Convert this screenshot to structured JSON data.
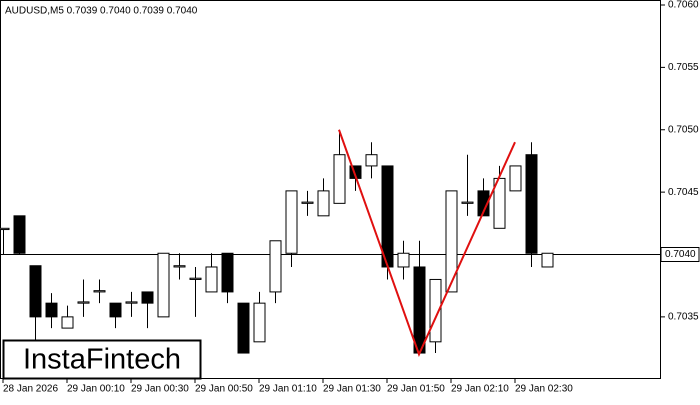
{
  "chart_data": {
    "type": "candlestick",
    "title": "AUDUSD,M5  0.7039 0.7040 0.7039 0.7040",
    "logo": "InstaFintech",
    "categories": [
      "28 Jan 2026",
      null,
      null,
      null,
      "29 Jan 00:10",
      null,
      null,
      null,
      "29 Jan 00:30",
      null,
      null,
      null,
      "29 Jan 00:50",
      null,
      null,
      null,
      "29 Jan 01:10",
      null,
      null,
      null,
      "29 Jan 01:30",
      null,
      null,
      null,
      "29 Jan 01:50",
      null,
      null,
      null,
      "29 Jan 02:10",
      null,
      null,
      null,
      "29 Jan 02:30",
      null,
      null
    ],
    "open": [
      0.7042,
      0.70431,
      0.70391,
      0.70361,
      0.70341,
      0.70361,
      0.7037,
      0.70361,
      0.70361,
      0.7037,
      0.7035,
      0.7039,
      0.7038,
      0.7037,
      0.70401,
      0.70361,
      0.7033,
      0.7037,
      0.70401,
      0.70441,
      0.70431,
      0.70441,
      0.70471,
      0.70471,
      0.70471,
      0.7039,
      0.7039,
      0.7033,
      0.7037,
      0.70441,
      0.70451,
      0.70421,
      0.70451,
      0.7048,
      0.7039
    ],
    "high": [
      0.70421,
      0.70431,
      0.70391,
      0.70369,
      0.70359,
      0.7038,
      0.7038,
      0.70361,
      0.7037,
      0.7037,
      0.70401,
      0.70401,
      0.7039,
      0.70401,
      0.70401,
      0.70361,
      0.7037,
      0.70411,
      0.70451,
      0.70451,
      0.70461,
      0.705,
      0.70471,
      0.7049,
      0.70471,
      0.70411,
      0.70411,
      0.7038,
      0.70451,
      0.7048,
      0.70461,
      0.70471,
      0.70471,
      0.7049,
      0.70401
    ],
    "low": [
      0.704,
      0.704,
      0.70331,
      0.70341,
      0.70341,
      0.7035,
      0.70361,
      0.70341,
      0.7035,
      0.70341,
      0.7035,
      0.7038,
      0.7035,
      0.7037,
      0.70361,
      0.70321,
      0.7033,
      0.70361,
      0.7039,
      0.70431,
      0.70431,
      0.70441,
      0.70451,
      0.70461,
      0.7038,
      0.7038,
      0.70321,
      0.70321,
      0.7037,
      0.70431,
      0.70431,
      0.70421,
      0.70451,
      0.7039,
      0.7039
    ],
    "close": [
      0.70421,
      0.70401,
      0.7035,
      0.7035,
      0.7035,
      0.70362,
      0.70371,
      0.7035,
      0.70362,
      0.70361,
      0.70401,
      0.70391,
      0.70381,
      0.7039,
      0.7037,
      0.70321,
      0.70361,
      0.70411,
      0.70451,
      0.70442,
      0.70451,
      0.7048,
      0.70461,
      0.7048,
      0.7039,
      0.70401,
      0.70321,
      0.7038,
      0.70451,
      0.70442,
      0.70431,
      0.70461,
      0.70471,
      0.70401,
      0.70401
    ],
    "ylim": [
      0.70301,
      0.706
    ],
    "yticks": [
      {
        "value": 0.7035,
        "label": "0.7035"
      },
      {
        "value": 0.7045,
        "label": "0.7045"
      },
      {
        "value": 0.705,
        "label": "0.7050"
      },
      {
        "value": 0.7055,
        "label": "0.7055"
      },
      {
        "value": 0.706,
        "label": "0.7060"
      }
    ],
    "last_price": {
      "value": 0.704,
      "label": "0.7040"
    },
    "pattern": {
      "color": "#e01010",
      "index": [
        21,
        26,
        32
      ],
      "values": [
        0.705,
        0.7032,
        0.7049
      ]
    }
  }
}
